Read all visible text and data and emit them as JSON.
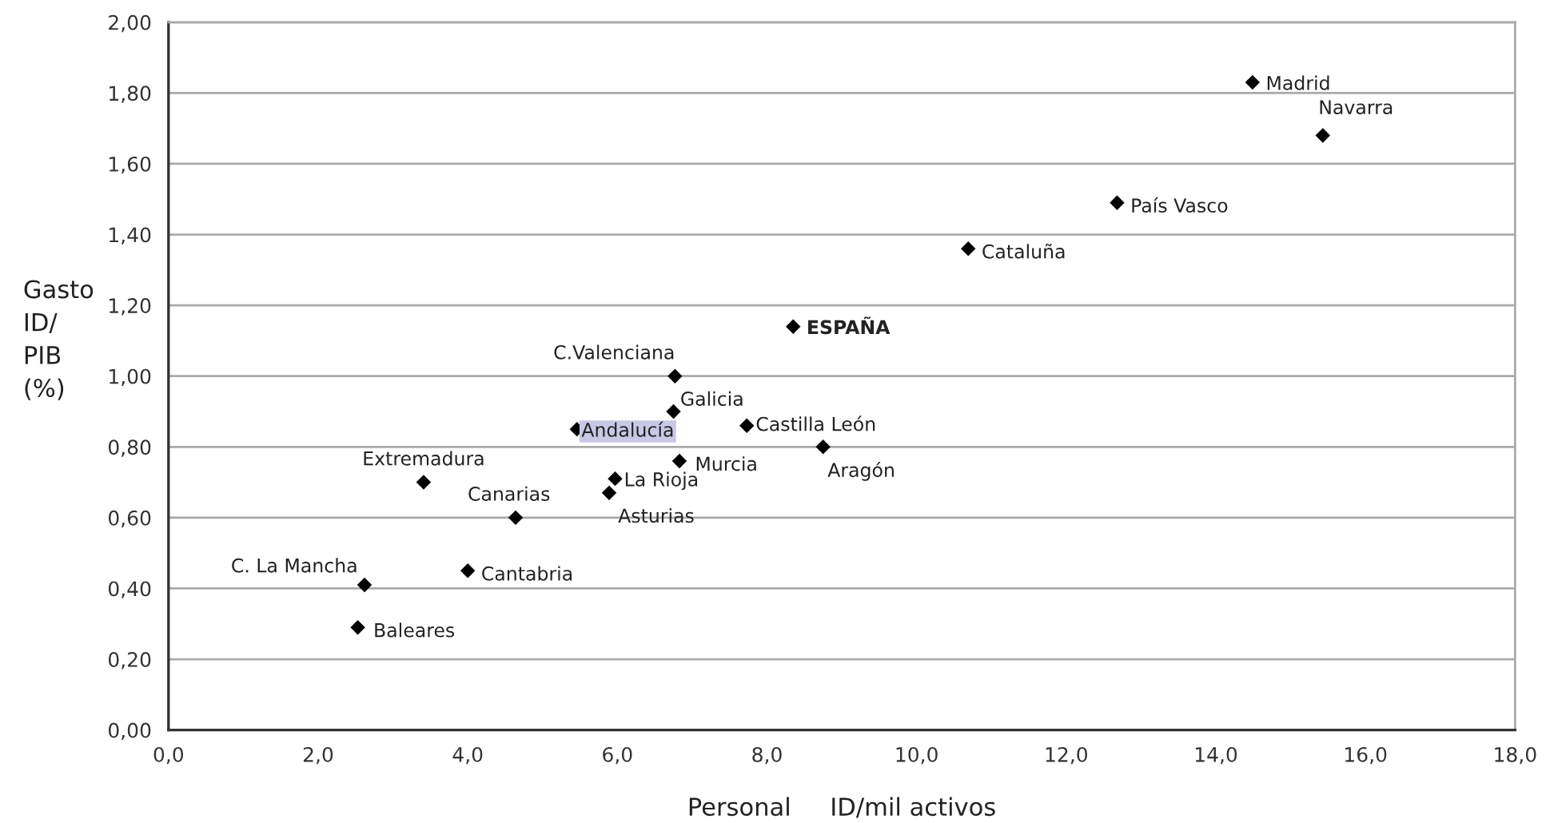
{
  "chart_data": {
    "type": "scatter",
    "xlabel": "Personal     ID/mil activos",
    "ylabel": "Gasto\nID/\nPIB\n(%)",
    "series": [
      {
        "color": "#000000",
        "x": [
          14.49,
          15.43,
          12.68,
          10.69,
          8.35,
          8.75,
          7.73,
          6.77,
          6.75,
          5.46,
          6.83,
          5.97,
          5.89,
          3.41,
          4.64,
          4.0,
          2.62,
          2.53
        ],
        "values": [
          1.83,
          1.68,
          1.49,
          1.36,
          1.14,
          0.8,
          0.86,
          1.0,
          0.9,
          0.85,
          0.76,
          0.71,
          0.67,
          0.7,
          0.6,
          0.45,
          0.41,
          0.29
        ]
      }
    ],
    "annotations": [
      {
        "text": "Madrid",
        "x": 14.49,
        "y": 1.83
      },
      {
        "text": "Navarra",
        "x": 15.43,
        "y": 1.68
      },
      {
        "text": "País Vasco",
        "x": 12.68,
        "y": 1.49
      },
      {
        "text": "Cataluña",
        "x": 10.69,
        "y": 1.36
      },
      {
        "text": "ESPAÑA",
        "x": 8.35,
        "y": 1.14
      },
      {
        "text": "Aragón",
        "x": 8.75,
        "y": 0.8
      },
      {
        "text": "Castilla León",
        "x": 7.73,
        "y": 0.86
      },
      {
        "text": "C.Valenciana",
        "x": 6.77,
        "y": 1.0
      },
      {
        "text": "Galicia",
        "x": 6.75,
        "y": 0.9
      },
      {
        "text": "Andalucía",
        "x": 5.46,
        "y": 0.85
      },
      {
        "text": "Murcia",
        "x": 6.83,
        "y": 0.76
      },
      {
        "text": "La Rioja",
        "x": 5.97,
        "y": 0.71
      },
      {
        "text": "Asturias",
        "x": 5.89,
        "y": 0.67
      },
      {
        "text": "Extremadura",
        "x": 3.41,
        "y": 0.7
      },
      {
        "text": "Canarias",
        "x": 4.64,
        "y": 0.6
      },
      {
        "text": "Cantabria",
        "x": 4.0,
        "y": 0.45
      },
      {
        "text": "C. La Mancha",
        "x": 2.62,
        "y": 0.41
      },
      {
        "text": "Baleares",
        "x": 2.53,
        "y": 0.29
      }
    ],
    "xlim": [
      0,
      18
    ],
    "ylim": [
      0,
      2
    ],
    "xticks": [
      {
        "value": 0,
        "label": "0,0"
      },
      {
        "value": 2,
        "label": "2,0"
      },
      {
        "value": 4,
        "label": "4,0"
      },
      {
        "value": 6,
        "label": "6,0"
      },
      {
        "value": 8,
        "label": "8,0"
      },
      {
        "value": 10,
        "label": "10,0"
      },
      {
        "value": 12,
        "label": "12,0"
      },
      {
        "value": 14,
        "label": "14,0"
      },
      {
        "value": 16,
        "label": "16,0"
      },
      {
        "value": 18,
        "label": "18,0"
      }
    ],
    "yticks": [
      {
        "value": 0,
        "label": "0,00"
      },
      {
        "value": 0.2,
        "label": "0,20"
      },
      {
        "value": 0.4,
        "label": "0,40"
      },
      {
        "value": 0.6,
        "label": "0,60"
      },
      {
        "value": 0.8,
        "label": "0,80"
      },
      {
        "value": 1.0,
        "label": "1,00"
      },
      {
        "value": 1.2,
        "label": "1,20"
      },
      {
        "value": 1.4,
        "label": "1,40"
      },
      {
        "value": 1.6,
        "label": "1,60"
      },
      {
        "value": 1.8,
        "label": "1,80"
      },
      {
        "value": 2.0,
        "label": "2,00"
      }
    ],
    "grid": "y",
    "marker": "diamond"
  }
}
